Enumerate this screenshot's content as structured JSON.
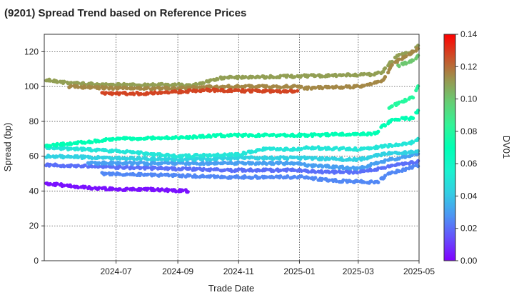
{
  "chart_data": {
    "type": "scatter",
    "title": "(9201)   Spread Trend based on Reference Prices",
    "xlabel": "Trade Date",
    "ylabel": "Spread (bp)",
    "colorbar_label": "DV01",
    "x_range": [
      "2024-04-20",
      "2025-05-01"
    ],
    "ylim": [
      0,
      130
    ],
    "x_ticks": [
      "2024-07",
      "2024-09",
      "2024-11",
      "2025-01",
      "2025-03",
      "2025-05"
    ],
    "y_ticks": [
      0,
      20,
      40,
      60,
      80,
      100,
      120
    ],
    "colorbar_ticks": [
      "0.00",
      "0.02",
      "0.04",
      "0.06",
      "0.08",
      "0.10",
      "0.12",
      "0.14"
    ],
    "colorbar_range": [
      0,
      0.14
    ],
    "colormap": "rainbow",
    "grid": true,
    "series": [
      {
        "dv01": 0.003,
        "points": [
          [
            "2024-04-20",
            44.5
          ],
          [
            "2024-06-01",
            42
          ],
          [
            "2024-07-01",
            41
          ],
          [
            "2024-08-01",
            41
          ],
          [
            "2024-09-12",
            40
          ]
        ]
      },
      {
        "dv01": 0.02,
        "points": [
          [
            "2024-04-20",
            55
          ],
          [
            "2024-06-15",
            54
          ],
          [
            "2024-08-15",
            53
          ],
          [
            "2024-10-15",
            52
          ],
          [
            "2024-12-31",
            52
          ],
          [
            "2025-01-20",
            51
          ],
          [
            "2025-03-01",
            51
          ],
          [
            "2025-03-25",
            53
          ],
          [
            "2025-04-10",
            55
          ],
          [
            "2025-05-01",
            57
          ]
        ]
      },
      {
        "dv01": 0.025,
        "points": [
          [
            "2024-06-15",
            50
          ],
          [
            "2024-09-01",
            49
          ],
          [
            "2024-10-15",
            48
          ],
          [
            "2024-12-31",
            48
          ],
          [
            "2025-01-05",
            48
          ],
          [
            "2025-02-01",
            46
          ],
          [
            "2025-03-20",
            45
          ],
          [
            "2025-04-01",
            50
          ],
          [
            "2025-04-20",
            53
          ],
          [
            "2025-05-01",
            55
          ]
        ]
      },
      {
        "dv01": 0.03,
        "points": [
          [
            "2024-06-01",
            56
          ],
          [
            "2024-08-01",
            56
          ],
          [
            "2024-11-01",
            56
          ],
          [
            "2024-12-31",
            56
          ],
          [
            "2025-01-05",
            55
          ],
          [
            "2025-03-01",
            53
          ],
          [
            "2025-04-01",
            58
          ],
          [
            "2025-04-20",
            60
          ],
          [
            "2025-05-01",
            62
          ]
        ]
      },
      {
        "dv01": 0.043,
        "points": [
          [
            "2024-04-20",
            60
          ],
          [
            "2024-07-01",
            59
          ],
          [
            "2024-09-01",
            58
          ],
          [
            "2024-11-01",
            59
          ],
          [
            "2024-12-31",
            59
          ],
          [
            "2025-01-05",
            59
          ],
          [
            "2025-03-01",
            58
          ],
          [
            "2025-04-01",
            62
          ],
          [
            "2025-04-20",
            62
          ],
          [
            "2025-05-01",
            63
          ]
        ]
      },
      {
        "dv01": 0.05,
        "points": [
          [
            "2024-04-20",
            65
          ],
          [
            "2024-07-01",
            63
          ],
          [
            "2024-09-01",
            60
          ],
          [
            "2024-11-01",
            61
          ],
          [
            "2024-11-25",
            64
          ],
          [
            "2024-12-31",
            64
          ],
          [
            "2025-01-05",
            65
          ],
          [
            "2025-03-01",
            64
          ],
          [
            "2025-04-01",
            66
          ],
          [
            "2025-04-20",
            67
          ],
          [
            "2025-05-01",
            70
          ]
        ]
      },
      {
        "dv01": 0.07,
        "points": [
          [
            "2024-04-20",
            66
          ],
          [
            "2024-06-01",
            68
          ],
          [
            "2024-07-01",
            70
          ],
          [
            "2024-09-15",
            71
          ],
          [
            "2024-10-15",
            72
          ],
          [
            "2024-12-31",
            72
          ],
          [
            "2025-01-05",
            72
          ],
          [
            "2025-03-20",
            73
          ],
          [
            "2025-03-25",
            77
          ],
          [
            "2025-04-05",
            81
          ],
          [
            "2025-04-25",
            82
          ],
          [
            "2025-05-01",
            87
          ]
        ]
      },
      {
        "dv01": 0.08,
        "points": [
          [
            "2025-04-01",
            88
          ],
          [
            "2025-04-25",
            94
          ],
          [
            "2025-05-01",
            101
          ]
        ]
      },
      {
        "dv01": 0.1,
        "points": [
          [
            "2025-04-10",
            112
          ],
          [
            "2025-04-25",
            115
          ],
          [
            "2025-05-01",
            118
          ]
        ]
      },
      {
        "dv01": 0.11,
        "points": [
          [
            "2024-04-20",
            104
          ],
          [
            "2024-05-15",
            102
          ],
          [
            "2024-07-01",
            101
          ],
          [
            "2024-09-01",
            101
          ],
          [
            "2024-09-20",
            101
          ],
          [
            "2024-10-15",
            105
          ],
          [
            "2024-12-31",
            106
          ],
          [
            "2025-01-05",
            106
          ],
          [
            "2025-03-15",
            107
          ],
          [
            "2025-03-25",
            108
          ],
          [
            "2025-04-01",
            113
          ],
          [
            "2025-04-10",
            118
          ],
          [
            "2025-04-25",
            120
          ],
          [
            "2025-05-01",
            124
          ]
        ]
      },
      {
        "dv01": 0.115,
        "points": [
          [
            "2024-05-15",
            100
          ],
          [
            "2024-07-01",
            99
          ],
          [
            "2024-09-01",
            99
          ],
          [
            "2024-10-15",
            100
          ],
          [
            "2024-12-31",
            100
          ],
          [
            "2025-01-05",
            99
          ],
          [
            "2025-03-01",
            100
          ],
          [
            "2025-03-25",
            103
          ],
          [
            "2025-04-05",
            113
          ],
          [
            "2025-04-25",
            120
          ],
          [
            "2025-05-01",
            122
          ]
        ]
      },
      {
        "dv01": 0.128,
        "points": [
          [
            "2024-06-15",
            96
          ],
          [
            "2024-08-01",
            96
          ],
          [
            "2024-09-01",
            97
          ],
          [
            "2024-10-01",
            98
          ],
          [
            "2024-12-31",
            97
          ]
        ]
      }
    ]
  }
}
